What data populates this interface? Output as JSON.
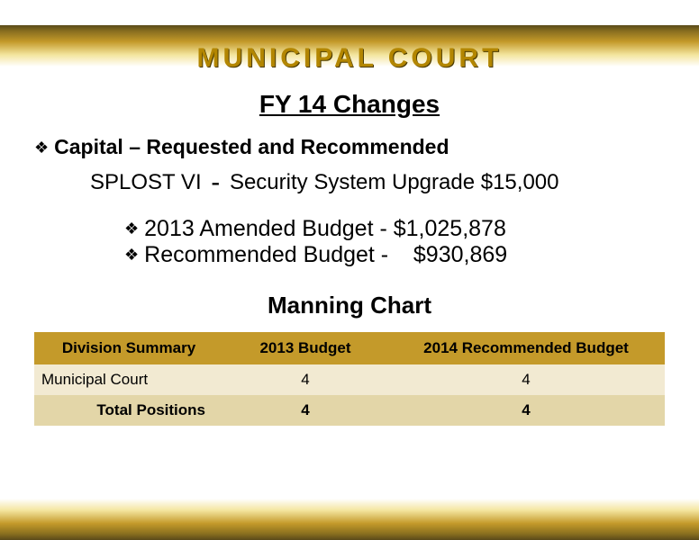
{
  "title": "MUNICIPAL COURT",
  "subtitle": "FY 14 Changes",
  "section_heading": "Capital – Requested and Recommended",
  "splost_prefix": "SPLOST VI",
  "splost_rest": "Security System Upgrade $15,000",
  "budget_lines": [
    "2013 Amended Budget - $1,025,878",
    "Recommended Budget -    $930,869"
  ],
  "chart_title": "Manning Chart",
  "table": {
    "columns": [
      "Division Summary",
      "2013 Budget",
      "2014 Recommended Budget"
    ],
    "col_widths_pct": [
      30,
      26,
      44
    ],
    "header_bg": "#c49a2a",
    "row_bg": "#f2ead2",
    "totals_bg": "#e3d6a8",
    "rows": [
      {
        "cells": [
          "Municipal Court",
          "4",
          "4"
        ],
        "is_total": false
      },
      {
        "cells": [
          "Total Positions",
          "4",
          "4"
        ],
        "is_total": true
      }
    ]
  },
  "colors": {
    "title_gold": "#b38600",
    "banner_dark": "#5a4a1a",
    "banner_mid": "#c49a2a",
    "banner_light": "#f4e6a0"
  }
}
